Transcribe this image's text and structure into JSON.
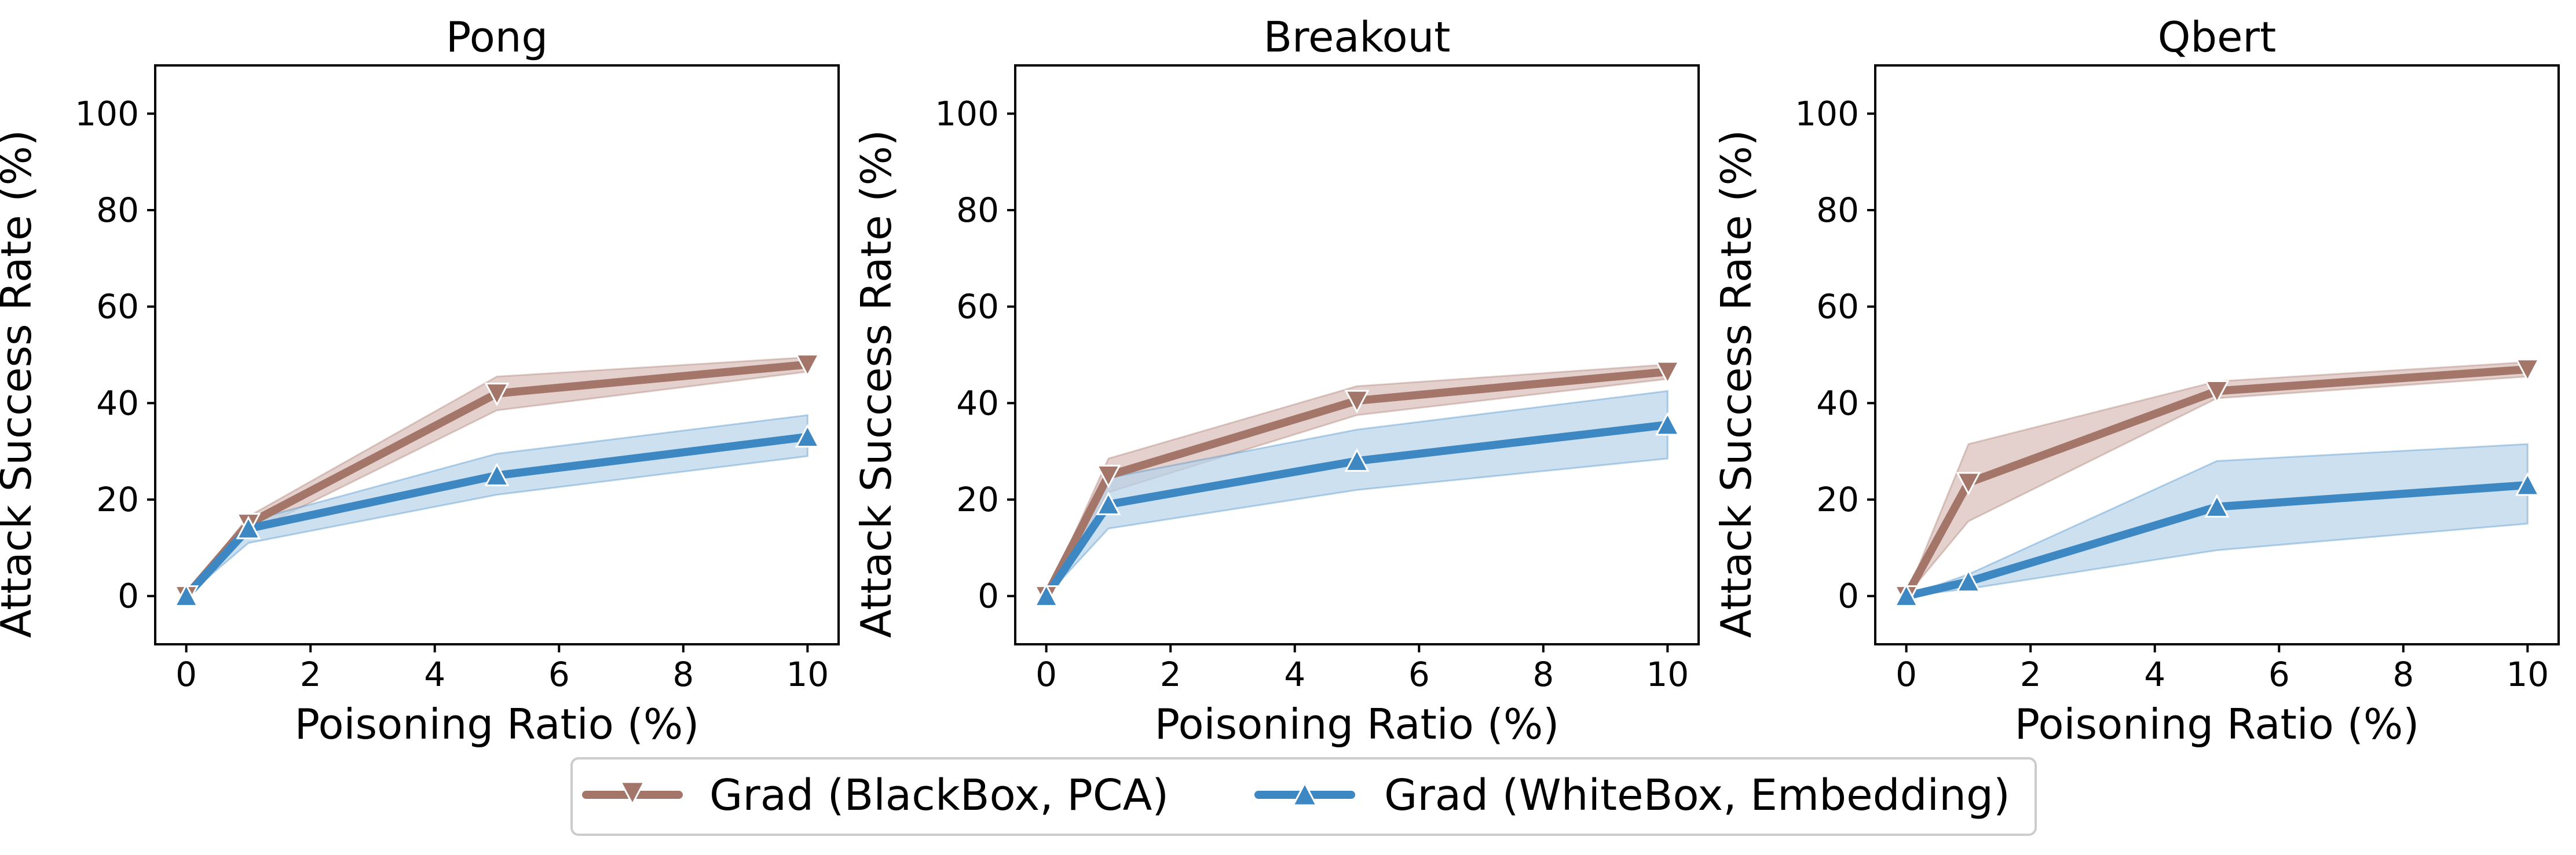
{
  "chart_data": [
    {
      "type": "line",
      "title": "Pong",
      "xlabel": "Poisoning Ratio (%)",
      "ylabel": "Attack Success Rate (%)",
      "xlim": [
        -0.5,
        10.5
      ],
      "ylim": [
        -10,
        110
      ],
      "xticks": [
        0,
        2,
        4,
        6,
        8,
        10
      ],
      "yticks": [
        0,
        20,
        40,
        60,
        80,
        100
      ],
      "x": [
        0,
        1,
        5,
        10
      ],
      "series": [
        {
          "name": "Grad (BlackBox, PCA)",
          "values": [
            0,
            15,
            42,
            48
          ],
          "lower": [
            0,
            13,
            38.5,
            46.5
          ],
          "upper": [
            0,
            16.5,
            45.5,
            49.5
          ]
        },
        {
          "name": "Grad (WhiteBox, Embedding)",
          "values": [
            0,
            14,
            25,
            33
          ],
          "lower": [
            0,
            11,
            21,
            29
          ],
          "upper": [
            0,
            15.5,
            29.5,
            37.5
          ]
        }
      ]
    },
    {
      "type": "line",
      "title": "Breakout",
      "xlabel": "Poisoning Ratio (%)",
      "ylabel": "Attack Success Rate (%)",
      "xlim": [
        -0.5,
        10.5
      ],
      "ylim": [
        -10,
        110
      ],
      "xticks": [
        0,
        2,
        4,
        6,
        8,
        10
      ],
      "yticks": [
        0,
        20,
        40,
        60,
        80,
        100
      ],
      "x": [
        0,
        1,
        5,
        10
      ],
      "series": [
        {
          "name": "Grad (BlackBox, PCA)",
          "values": [
            0,
            25,
            40.5,
            46.5
          ],
          "lower": [
            0,
            21.5,
            37.5,
            45
          ],
          "upper": [
            0,
            28.5,
            43.5,
            48
          ]
        },
        {
          "name": "Grad (WhiteBox, Embedding)",
          "values": [
            0,
            19,
            28,
            35.5
          ],
          "lower": [
            0,
            14,
            22,
            28.5
          ],
          "upper": [
            0,
            24.5,
            34.5,
            42.5
          ]
        }
      ]
    },
    {
      "type": "line",
      "title": "Qbert",
      "xlabel": "Poisoning Ratio (%)",
      "ylabel": "Attack Success Rate (%)",
      "xlim": [
        -0.5,
        10.5
      ],
      "ylim": [
        -10,
        110
      ],
      "xticks": [
        0,
        2,
        4,
        6,
        8,
        10
      ],
      "yticks": [
        0,
        20,
        40,
        60,
        80,
        100
      ],
      "x": [
        0,
        1,
        5,
        10
      ],
      "series": [
        {
          "name": "Grad (BlackBox, PCA)",
          "values": [
            0,
            23.5,
            42.5,
            47
          ],
          "lower": [
            0,
            15.5,
            41,
            45.5
          ],
          "upper": [
            0,
            31.5,
            44.5,
            48.5
          ]
        },
        {
          "name": "Grad (WhiteBox, Embedding)",
          "values": [
            0,
            3,
            18.5,
            23
          ],
          "lower": [
            0,
            1.5,
            9.5,
            15
          ],
          "upper": [
            0,
            4.5,
            28,
            31.5
          ]
        }
      ]
    }
  ],
  "legend": {
    "entries": [
      "Grad (BlackBox, PCA)",
      "Grad (WhiteBox, Embedding)"
    ],
    "placement": "bottom-center"
  },
  "colors": {
    "blackbox_line": "#a4766a",
    "blackbox_band": "#d9bcb6",
    "whitebox_line": "#3d88c3",
    "whitebox_band": "#b8d3ea",
    "axes": "#000000"
  }
}
